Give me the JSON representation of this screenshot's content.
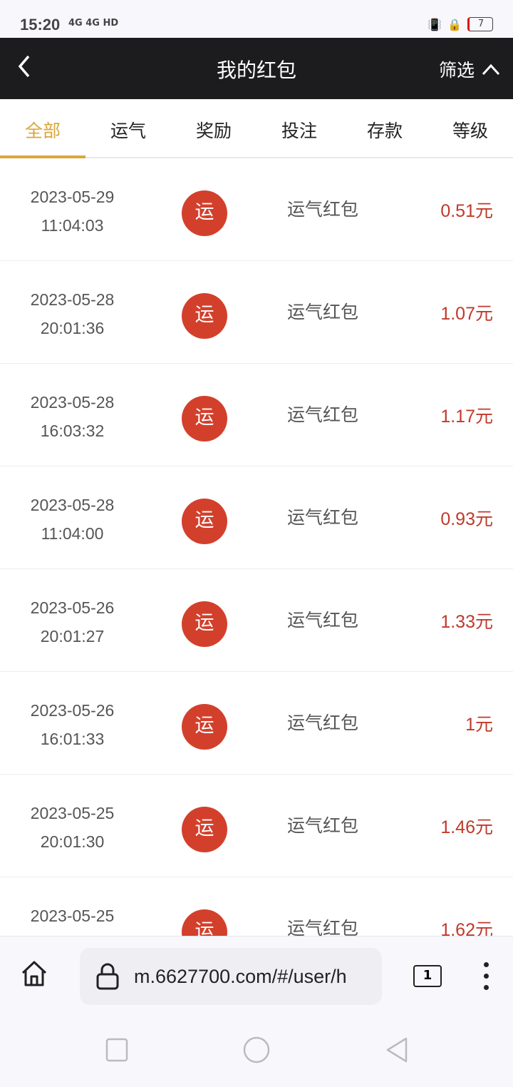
{
  "status_bar": {
    "time": "15:20",
    "signal": "4G 4G HD",
    "battery": "7"
  },
  "header": {
    "title": "我的红包",
    "filter_label": "筛选"
  },
  "tabs": [
    {
      "label": "全部",
      "active": true
    },
    {
      "label": "运气"
    },
    {
      "label": "奖励"
    },
    {
      "label": "投注"
    },
    {
      "label": "存款"
    },
    {
      "label": "等级"
    }
  ],
  "records": [
    {
      "date": "2023-05-29",
      "time": "11:04:03",
      "badge": "运",
      "type": "运气红包",
      "amount": "0.51元"
    },
    {
      "date": "2023-05-28",
      "time": "20:01:36",
      "badge": "运",
      "type": "运气红包",
      "amount": "1.07元"
    },
    {
      "date": "2023-05-28",
      "time": "16:03:32",
      "badge": "运",
      "type": "运气红包",
      "amount": "1.17元"
    },
    {
      "date": "2023-05-28",
      "time": "11:04:00",
      "badge": "运",
      "type": "运气红包",
      "amount": "0.93元"
    },
    {
      "date": "2023-05-26",
      "time": "20:01:27",
      "badge": "运",
      "type": "运气红包",
      "amount": "1.33元"
    },
    {
      "date": "2023-05-26",
      "time": "16:01:33",
      "badge": "运",
      "type": "运气红包",
      "amount": "1元"
    },
    {
      "date": "2023-05-25",
      "time": "20:01:30",
      "badge": "运",
      "type": "运气红包",
      "amount": "1.46元"
    },
    {
      "date": "2023-05-25",
      "time": "",
      "badge": "运",
      "type": "运气红包",
      "amount": "1.62元"
    }
  ],
  "browser": {
    "url": "m.6627700.com/#/user/h",
    "tab_count": "1"
  },
  "colors": {
    "accent": "#d9a73c",
    "header_bg": "#1c1b1d",
    "badge": "#d2402c",
    "amount": "#c0392b"
  }
}
